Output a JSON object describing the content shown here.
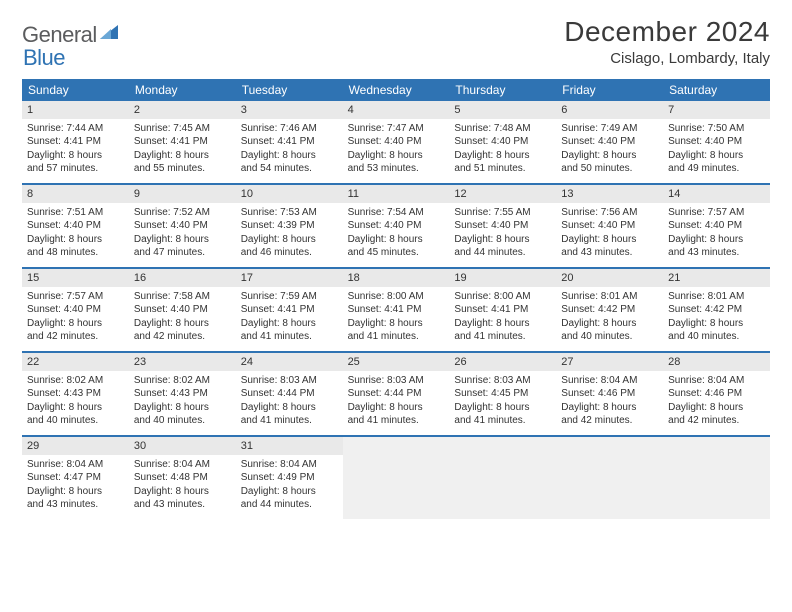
{
  "logo": {
    "word1": "General",
    "word2": "Blue"
  },
  "title": "December 2024",
  "location": "Cislago, Lombardy, Italy",
  "header_color": "#2f73b3",
  "daynum_bg": "#e9e9e9",
  "empty_bg": "#f0f0f0",
  "day_names": [
    "Sunday",
    "Monday",
    "Tuesday",
    "Wednesday",
    "Thursday",
    "Friday",
    "Saturday"
  ],
  "weeks": [
    [
      {
        "n": "1",
        "sr": "Sunrise: 7:44 AM",
        "ss": "Sunset: 4:41 PM",
        "d1": "Daylight: 8 hours",
        "d2": "and 57 minutes."
      },
      {
        "n": "2",
        "sr": "Sunrise: 7:45 AM",
        "ss": "Sunset: 4:41 PM",
        "d1": "Daylight: 8 hours",
        "d2": "and 55 minutes."
      },
      {
        "n": "3",
        "sr": "Sunrise: 7:46 AM",
        "ss": "Sunset: 4:41 PM",
        "d1": "Daylight: 8 hours",
        "d2": "and 54 minutes."
      },
      {
        "n": "4",
        "sr": "Sunrise: 7:47 AM",
        "ss": "Sunset: 4:40 PM",
        "d1": "Daylight: 8 hours",
        "d2": "and 53 minutes."
      },
      {
        "n": "5",
        "sr": "Sunrise: 7:48 AM",
        "ss": "Sunset: 4:40 PM",
        "d1": "Daylight: 8 hours",
        "d2": "and 51 minutes."
      },
      {
        "n": "6",
        "sr": "Sunrise: 7:49 AM",
        "ss": "Sunset: 4:40 PM",
        "d1": "Daylight: 8 hours",
        "d2": "and 50 minutes."
      },
      {
        "n": "7",
        "sr": "Sunrise: 7:50 AM",
        "ss": "Sunset: 4:40 PM",
        "d1": "Daylight: 8 hours",
        "d2": "and 49 minutes."
      }
    ],
    [
      {
        "n": "8",
        "sr": "Sunrise: 7:51 AM",
        "ss": "Sunset: 4:40 PM",
        "d1": "Daylight: 8 hours",
        "d2": "and 48 minutes."
      },
      {
        "n": "9",
        "sr": "Sunrise: 7:52 AM",
        "ss": "Sunset: 4:40 PM",
        "d1": "Daylight: 8 hours",
        "d2": "and 47 minutes."
      },
      {
        "n": "10",
        "sr": "Sunrise: 7:53 AM",
        "ss": "Sunset: 4:39 PM",
        "d1": "Daylight: 8 hours",
        "d2": "and 46 minutes."
      },
      {
        "n": "11",
        "sr": "Sunrise: 7:54 AM",
        "ss": "Sunset: 4:40 PM",
        "d1": "Daylight: 8 hours",
        "d2": "and 45 minutes."
      },
      {
        "n": "12",
        "sr": "Sunrise: 7:55 AM",
        "ss": "Sunset: 4:40 PM",
        "d1": "Daylight: 8 hours",
        "d2": "and 44 minutes."
      },
      {
        "n": "13",
        "sr": "Sunrise: 7:56 AM",
        "ss": "Sunset: 4:40 PM",
        "d1": "Daylight: 8 hours",
        "d2": "and 43 minutes."
      },
      {
        "n": "14",
        "sr": "Sunrise: 7:57 AM",
        "ss": "Sunset: 4:40 PM",
        "d1": "Daylight: 8 hours",
        "d2": "and 43 minutes."
      }
    ],
    [
      {
        "n": "15",
        "sr": "Sunrise: 7:57 AM",
        "ss": "Sunset: 4:40 PM",
        "d1": "Daylight: 8 hours",
        "d2": "and 42 minutes."
      },
      {
        "n": "16",
        "sr": "Sunrise: 7:58 AM",
        "ss": "Sunset: 4:40 PM",
        "d1": "Daylight: 8 hours",
        "d2": "and 42 minutes."
      },
      {
        "n": "17",
        "sr": "Sunrise: 7:59 AM",
        "ss": "Sunset: 4:41 PM",
        "d1": "Daylight: 8 hours",
        "d2": "and 41 minutes."
      },
      {
        "n": "18",
        "sr": "Sunrise: 8:00 AM",
        "ss": "Sunset: 4:41 PM",
        "d1": "Daylight: 8 hours",
        "d2": "and 41 minutes."
      },
      {
        "n": "19",
        "sr": "Sunrise: 8:00 AM",
        "ss": "Sunset: 4:41 PM",
        "d1": "Daylight: 8 hours",
        "d2": "and 41 minutes."
      },
      {
        "n": "20",
        "sr": "Sunrise: 8:01 AM",
        "ss": "Sunset: 4:42 PM",
        "d1": "Daylight: 8 hours",
        "d2": "and 40 minutes."
      },
      {
        "n": "21",
        "sr": "Sunrise: 8:01 AM",
        "ss": "Sunset: 4:42 PM",
        "d1": "Daylight: 8 hours",
        "d2": "and 40 minutes."
      }
    ],
    [
      {
        "n": "22",
        "sr": "Sunrise: 8:02 AM",
        "ss": "Sunset: 4:43 PM",
        "d1": "Daylight: 8 hours",
        "d2": "and 40 minutes."
      },
      {
        "n": "23",
        "sr": "Sunrise: 8:02 AM",
        "ss": "Sunset: 4:43 PM",
        "d1": "Daylight: 8 hours",
        "d2": "and 40 minutes."
      },
      {
        "n": "24",
        "sr": "Sunrise: 8:03 AM",
        "ss": "Sunset: 4:44 PM",
        "d1": "Daylight: 8 hours",
        "d2": "and 41 minutes."
      },
      {
        "n": "25",
        "sr": "Sunrise: 8:03 AM",
        "ss": "Sunset: 4:44 PM",
        "d1": "Daylight: 8 hours",
        "d2": "and 41 minutes."
      },
      {
        "n": "26",
        "sr": "Sunrise: 8:03 AM",
        "ss": "Sunset: 4:45 PM",
        "d1": "Daylight: 8 hours",
        "d2": "and 41 minutes."
      },
      {
        "n": "27",
        "sr": "Sunrise: 8:04 AM",
        "ss": "Sunset: 4:46 PM",
        "d1": "Daylight: 8 hours",
        "d2": "and 42 minutes."
      },
      {
        "n": "28",
        "sr": "Sunrise: 8:04 AM",
        "ss": "Sunset: 4:46 PM",
        "d1": "Daylight: 8 hours",
        "d2": "and 42 minutes."
      }
    ],
    [
      {
        "n": "29",
        "sr": "Sunrise: 8:04 AM",
        "ss": "Sunset: 4:47 PM",
        "d1": "Daylight: 8 hours",
        "d2": "and 43 minutes."
      },
      {
        "n": "30",
        "sr": "Sunrise: 8:04 AM",
        "ss": "Sunset: 4:48 PM",
        "d1": "Daylight: 8 hours",
        "d2": "and 43 minutes."
      },
      {
        "n": "31",
        "sr": "Sunrise: 8:04 AM",
        "ss": "Sunset: 4:49 PM",
        "d1": "Daylight: 8 hours",
        "d2": "and 44 minutes."
      },
      null,
      null,
      null,
      null
    ]
  ]
}
